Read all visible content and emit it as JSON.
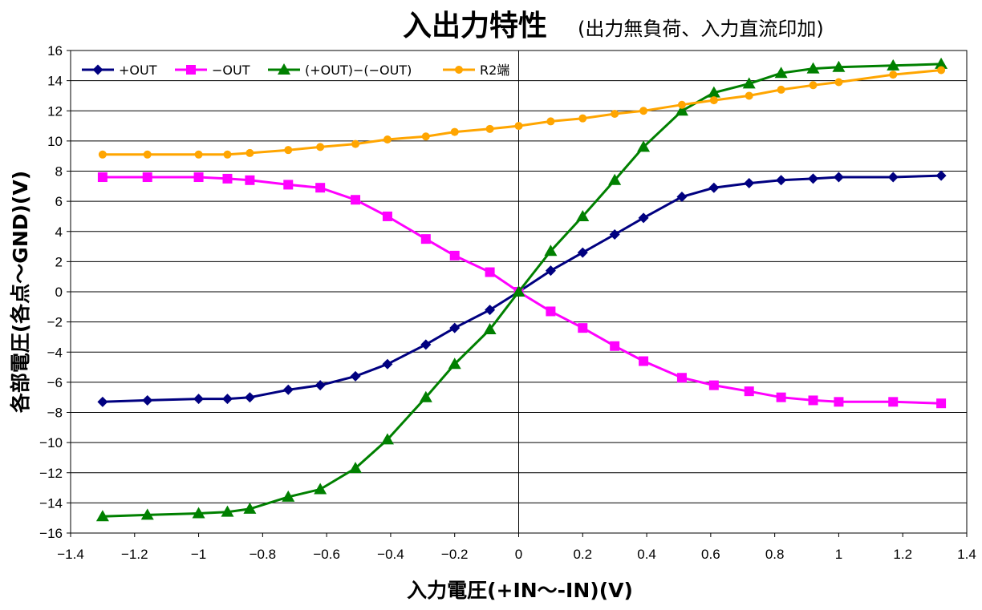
{
  "chart_data": {
    "type": "line",
    "title": "入出力特性",
    "subtitle": "(出力無負荷、入力直流印加)",
    "xlabel": "入力電圧(+IN～-IN)(V)",
    "ylabel": "各部電圧(各点～GND)(V)",
    "xlim": [
      -1.4,
      1.4
    ],
    "ylim": [
      -16,
      16
    ],
    "xticks": [
      -1.4,
      -1.2,
      -1,
      -0.8,
      -0.6,
      -0.4,
      -0.2,
      0,
      0.2,
      0.4,
      0.6,
      0.8,
      1,
      1.2,
      1.4
    ],
    "xtick_labels": [
      "−1.4",
      "−1.2",
      "−1",
      "−0.8",
      "−0.6",
      "−0.4",
      "−0.2",
      "0",
      "0.2",
      "0.4",
      "0.6",
      "0.8",
      "1",
      "1.2",
      "1.4"
    ],
    "yticks": [
      -16,
      -14,
      -12,
      -10,
      -8,
      -6,
      -4,
      -2,
      0,
      2,
      4,
      6,
      8,
      10,
      12,
      14,
      16
    ],
    "ytick_labels": [
      "−16",
      "−14",
      "−12",
      "−10",
      "−8",
      "−6",
      "−4",
      "−2",
      "0",
      "2",
      "4",
      "6",
      "8",
      "10",
      "12",
      "14",
      "16"
    ],
    "grid": "horizontal",
    "legend_position": "top-left",
    "x": [
      -1.3,
      -1.16,
      -1.0,
      -0.91,
      -0.84,
      -0.72,
      -0.62,
      -0.51,
      -0.41,
      -0.29,
      -0.2,
      -0.09,
      0.0,
      0.1,
      0.2,
      0.3,
      0.39,
      0.51,
      0.61,
      0.72,
      0.82,
      0.92,
      1.0,
      1.17,
      1.32
    ],
    "series": [
      {
        "name": "+OUT",
        "color": "#000080",
        "marker": "diamond",
        "values": [
          -7.3,
          -7.2,
          -7.1,
          -7.1,
          -7.0,
          -6.5,
          -6.2,
          -5.6,
          -4.8,
          -3.5,
          -2.4,
          -1.2,
          0.0,
          1.4,
          2.6,
          3.8,
          4.9,
          6.3,
          6.9,
          7.2,
          7.4,
          7.5,
          7.6,
          7.6,
          7.7
        ]
      },
      {
        "name": "−OUT",
        "color": "#ff00ff",
        "marker": "square",
        "values": [
          7.6,
          7.6,
          7.6,
          7.5,
          7.4,
          7.1,
          6.9,
          6.1,
          5.0,
          3.5,
          2.4,
          1.3,
          0.0,
          -1.3,
          -2.4,
          -3.6,
          -4.6,
          -5.7,
          -6.2,
          -6.6,
          -7.0,
          -7.2,
          -7.3,
          -7.3,
          -7.4
        ]
      },
      {
        "name": "(+OUT)−(−OUT)",
        "color": "#008000",
        "marker": "triangle",
        "values": [
          -14.9,
          -14.8,
          -14.7,
          -14.6,
          -14.4,
          -13.6,
          -13.1,
          -11.7,
          -9.8,
          -7.0,
          -4.8,
          -2.5,
          0.0,
          2.7,
          5.0,
          7.4,
          9.6,
          12.0,
          13.2,
          13.8,
          14.5,
          14.8,
          14.9,
          15.0,
          15.1
        ]
      },
      {
        "name": "R2端",
        "color": "#ffa500",
        "marker": "circle",
        "values": [
          9.1,
          9.1,
          9.1,
          9.1,
          9.2,
          9.4,
          9.6,
          9.8,
          10.1,
          10.3,
          10.6,
          10.8,
          11.0,
          11.3,
          11.5,
          11.8,
          12.0,
          12.4,
          12.7,
          13.0,
          13.4,
          13.7,
          13.9,
          14.4,
          14.7
        ]
      }
    ]
  }
}
